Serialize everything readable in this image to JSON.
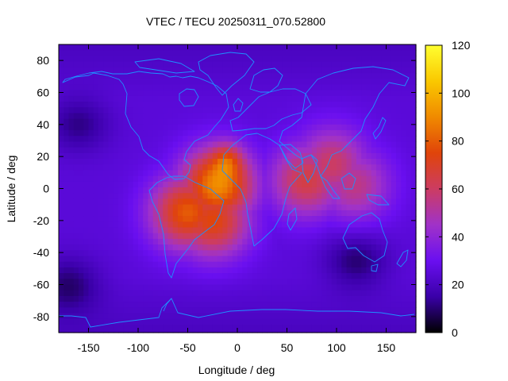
{
  "chart_data": {
    "type": "heatmap",
    "title": "VTEC / TECU 20250311_070.52800",
    "xlabel": "Longitude / deg",
    "ylabel": "Latitude / deg",
    "xlim": [
      -180,
      180
    ],
    "ylim": [
      -90,
      90
    ],
    "xticks": [
      -150,
      -100,
      -50,
      0,
      50,
      100,
      150
    ],
    "yticks": [
      80,
      60,
      40,
      20,
      0,
      -20,
      -40,
      -60,
      -80
    ],
    "colorbar": {
      "range": [
        0,
        120
      ],
      "ticks": [
        120,
        100,
        80,
        60,
        40,
        20,
        0
      ],
      "palette": [
        "#000000",
        "#3a00a8",
        "#6a0ff0",
        "#a032c8",
        "#cc3c62",
        "#e0440a",
        "#f08a00",
        "#fac800",
        "#ffff30"
      ]
    },
    "peak": {
      "lon": -10,
      "lat": 18,
      "value": 112
    },
    "field_features": [
      {
        "name": "equatorial-anomaly-africa-atlantic",
        "lon": -20,
        "lat": 2,
        "value": 90
      },
      {
        "name": "south-america-east",
        "lon": -50,
        "lat": -15,
        "value": 80
      },
      {
        "name": "southern-crest",
        "lon": -25,
        "lat": -20,
        "value": 75
      },
      {
        "name": "indian-ocean-extension",
        "lon": 70,
        "lat": 5,
        "value": 65
      },
      {
        "name": "south-asia",
        "lon": 95,
        "lat": 15,
        "value": 60
      },
      {
        "name": "indonesia",
        "lon": 118,
        "lat": 2,
        "value": 55
      },
      {
        "name": "north-pacific-low",
        "lon": -160,
        "lat": 40,
        "value": 12
      },
      {
        "name": "south-pacific-low",
        "lon": -170,
        "lat": -60,
        "value": 10
      },
      {
        "name": "southern-ocean-low",
        "lon": 120,
        "lat": -45,
        "value": 10
      },
      {
        "name": "background",
        "value": 25
      }
    ],
    "overlay": "coastlines"
  }
}
